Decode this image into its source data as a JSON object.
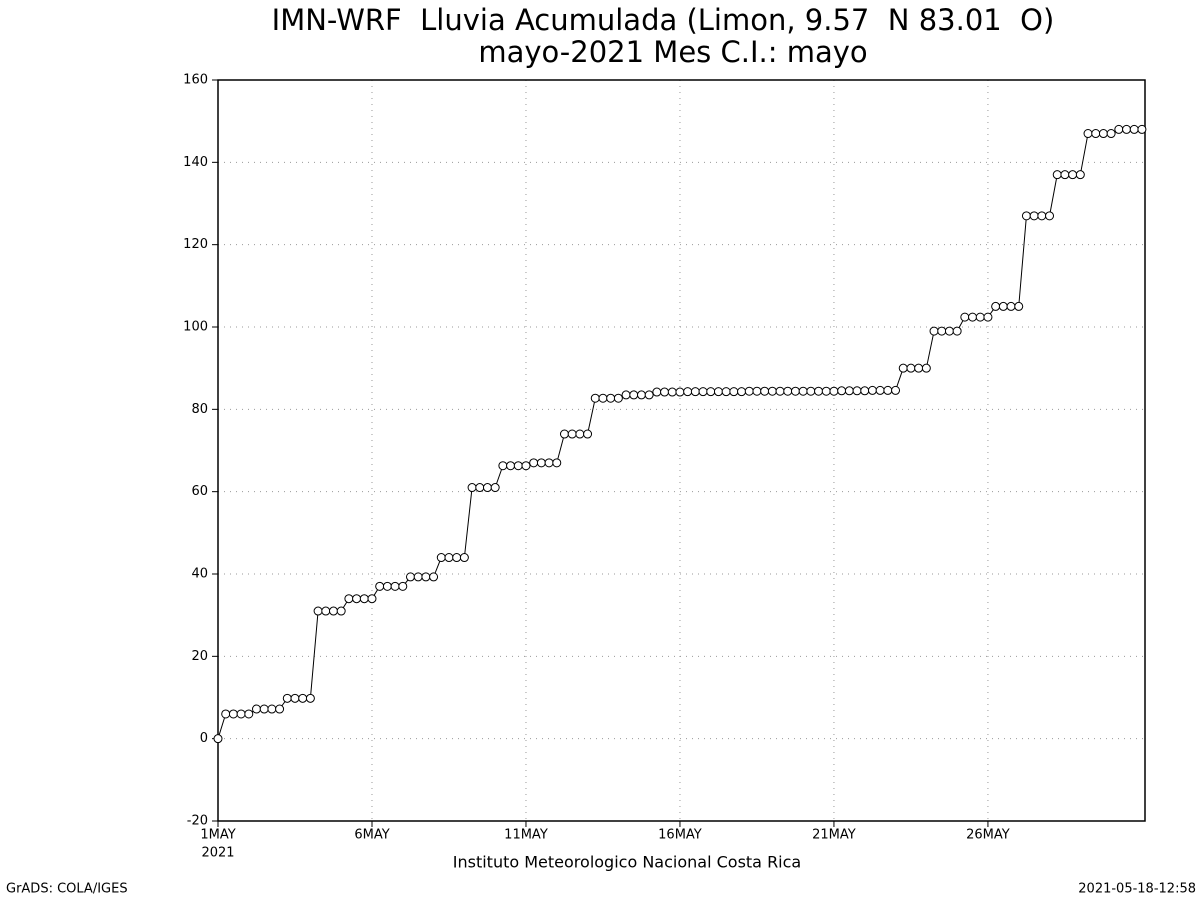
{
  "chart_data": {
    "type": "line",
    "title": "IMN-WRF  Lluvia Acumulada (Limon, 9.57  N 83.01  O)",
    "subtitle": "mayo-2021 Mes C.I.: mayo",
    "x_label": "Instituto Meteorologico Nacional Costa Rica",
    "x_sublabel": "2021",
    "footer_left": "GrADS: COLA/IGES",
    "footer_right": "2021-05-18-12:58",
    "grid": true,
    "color": "#000000",
    "marker_fill": "#ffffff",
    "xlim": [
      1,
      31.1
    ],
    "xticks": [
      {
        "value": 1,
        "label": "1MAY"
      },
      {
        "value": 6,
        "label": "6MAY"
      },
      {
        "value": 11,
        "label": "11MAY"
      },
      {
        "value": 16,
        "label": "16MAY"
      },
      {
        "value": 21,
        "label": "21MAY"
      },
      {
        "value": 26,
        "label": "26MAY"
      }
    ],
    "ylim": [
      -20,
      160
    ],
    "yticks": [
      -20,
      0,
      20,
      40,
      60,
      80,
      100,
      120,
      140,
      160
    ],
    "x": [
      1,
      1.25,
      1.5,
      1.75,
      2,
      2.25,
      2.5,
      2.75,
      3,
      3.25,
      3.5,
      3.75,
      4,
      4.25,
      4.5,
      4.75,
      5,
      5.25,
      5.5,
      5.75,
      6,
      6.25,
      6.5,
      6.75,
      7,
      7.25,
      7.5,
      7.75,
      8,
      8.25,
      8.5,
      8.75,
      9,
      9.25,
      9.5,
      9.75,
      10,
      10.25,
      10.5,
      10.75,
      11,
      11.25,
      11.5,
      11.75,
      12,
      12.25,
      12.5,
      12.75,
      13,
      13.25,
      13.5,
      13.75,
      14,
      14.25,
      14.5,
      14.75,
      15,
      15.25,
      15.5,
      15.75,
      16,
      16.25,
      16.5,
      16.75,
      17,
      17.25,
      17.5,
      17.75,
      18,
      18.25,
      18.5,
      18.75,
      19,
      19.25,
      19.5,
      19.75,
      20,
      20.25,
      20.5,
      20.75,
      21,
      21.25,
      21.5,
      21.75,
      22,
      22.25,
      22.5,
      22.75,
      23,
      23.25,
      23.5,
      23.75,
      24,
      24.25,
      24.5,
      24.75,
      25,
      25.25,
      25.5,
      25.75,
      26,
      26.25,
      26.5,
      26.75,
      27,
      27.25,
      27.5,
      27.75,
      28,
      28.25,
      28.5,
      28.75,
      29,
      29.25,
      29.5,
      29.75,
      30,
      30.25,
      30.5,
      30.75,
      31
    ],
    "values": [
      0,
      6,
      6,
      6,
      6,
      7.2,
      7.2,
      7.2,
      7.2,
      9.8,
      9.8,
      9.8,
      9.8,
      31,
      31,
      31,
      31,
      34,
      34,
      34,
      34,
      37,
      37,
      37,
      37,
      39.3,
      39.3,
      39.3,
      39.3,
      44,
      44,
      44,
      44,
      61,
      61,
      61,
      61,
      66.3,
      66.3,
      66.3,
      66.3,
      67,
      67,
      67,
      67,
      74,
      74,
      74,
      74,
      82.7,
      82.7,
      82.7,
      82.7,
      83.5,
      83.5,
      83.5,
      83.5,
      84.2,
      84.2,
      84.2,
      84.2,
      84.3,
      84.3,
      84.3,
      84.3,
      84.3,
      84.3,
      84.3,
      84.3,
      84.4,
      84.4,
      84.4,
      84.4,
      84.4,
      84.4,
      84.4,
      84.4,
      84.4,
      84.4,
      84.4,
      84.4,
      84.5,
      84.5,
      84.5,
      84.5,
      84.6,
      84.6,
      84.6,
      84.6,
      90,
      90,
      90,
      90,
      99,
      99,
      99,
      99,
      102.4,
      102.4,
      102.4,
      102.4,
      105,
      105,
      105,
      105,
      127,
      127,
      127,
      127,
      137,
      137,
      137,
      137,
      147,
      147,
      147,
      147,
      148,
      148,
      148,
      148
    ]
  }
}
